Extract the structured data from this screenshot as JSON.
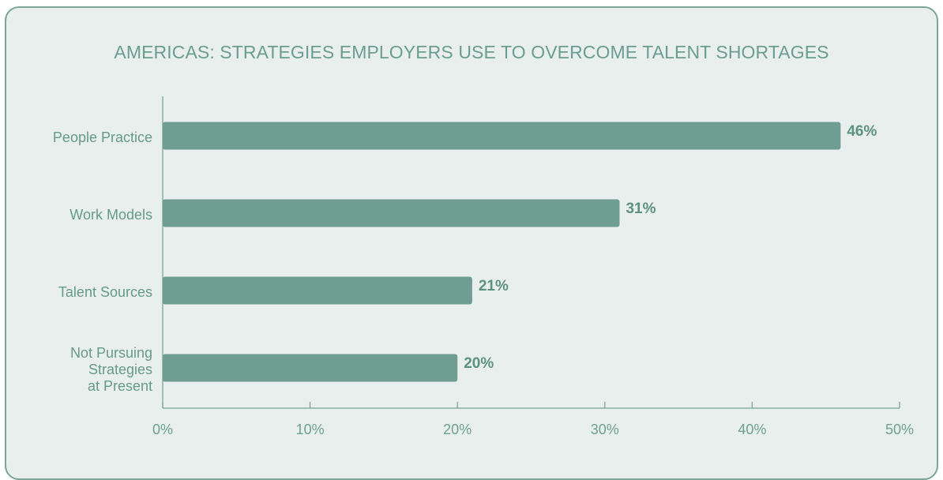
{
  "chart_data": {
    "type": "bar",
    "orientation": "horizontal",
    "title": "AMERICAS: STRATEGIES EMPLOYERS USE TO OVERCOME TALENT SHORTAGES",
    "categories": [
      "People Practice",
      "Work Models",
      "Talent Sources",
      "Not Pursuing\nStrategies\nat Present"
    ],
    "values": [
      46,
      31,
      21,
      20
    ],
    "value_labels": [
      "46%",
      "31%",
      "21%",
      "20%"
    ],
    "xlim": [
      0,
      50
    ],
    "xticks": [
      0,
      10,
      20,
      30,
      40,
      50
    ],
    "xtick_labels": [
      "0%",
      "10%",
      "20%",
      "30%",
      "40%",
      "50%"
    ],
    "grid": false,
    "colors": {
      "bar": "#6f9d92",
      "axis": "#7aa597",
      "title": "#6b9e90",
      "background": "#e8efec"
    }
  }
}
